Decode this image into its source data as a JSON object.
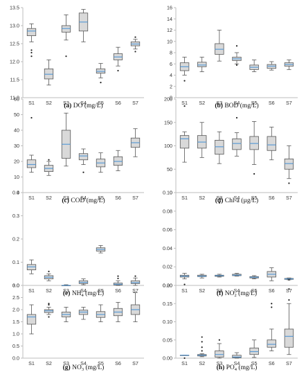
{
  "chart_data": [
    {
      "type": "box",
      "caption_letter": "(a)",
      "caption_text": "DO (mg/L)",
      "ylim": [
        11.0,
        13.5
      ],
      "yticks": [
        "11.0",
        "11.5",
        "12.0",
        "12.5",
        "13.0",
        "13.5"
      ],
      "categories": [
        "S1",
        "S2",
        "S3",
        "S4",
        "S5",
        "S6",
        "S7"
      ],
      "series": [
        {
          "min": 12.55,
          "q1": 12.72,
          "median": 12.85,
          "q3": 12.92,
          "max": 13.05,
          "outliers": [
            12.15,
            12.25,
            12.32
          ]
        },
        {
          "min": 11.35,
          "q1": 11.52,
          "median": 11.65,
          "q3": 11.8,
          "max": 12.05,
          "outliers": []
        },
        {
          "min": 12.6,
          "q1": 12.82,
          "median": 12.92,
          "q3": 13.0,
          "max": 13.3,
          "outliers": [
            12.15
          ]
        },
        {
          "min": 12.55,
          "q1": 12.85,
          "median": 13.1,
          "q3": 13.35,
          "max": 13.45,
          "outliers": []
        },
        {
          "min": 11.55,
          "q1": 11.68,
          "median": 11.73,
          "q3": 11.8,
          "max": 11.95,
          "outliers": [
            11.42
          ]
        },
        {
          "min": 11.88,
          "q1": 12.05,
          "median": 12.13,
          "q3": 12.22,
          "max": 12.4,
          "outliers": [
            11.75
          ]
        },
        {
          "min": 12.35,
          "q1": 12.44,
          "median": 12.49,
          "q3": 12.55,
          "max": 12.62,
          "outliers": [
            12.28,
            12.68
          ]
        }
      ]
    },
    {
      "type": "box",
      "caption_letter": "(b)",
      "caption_text": "BOD (mg/L)",
      "ylim": [
        0,
        16
      ],
      "yticks": [
        "0",
        "2",
        "4",
        "6",
        "8",
        "10",
        "12",
        "14",
        "16"
      ],
      "categories": [
        "S1",
        "S2",
        "S3",
        "S4",
        "S5",
        "S6",
        "S7"
      ],
      "series": [
        {
          "min": 4.0,
          "q1": 4.8,
          "median": 5.5,
          "q3": 6.2,
          "max": 7.2,
          "outliers": [
            3.0
          ]
        },
        {
          "min": 4.6,
          "q1": 5.5,
          "median": 5.8,
          "q3": 6.3,
          "max": 7.2,
          "outliers": []
        },
        {
          "min": 6.5,
          "q1": 7.7,
          "median": 8.6,
          "q3": 9.6,
          "max": 12.0,
          "outliers": []
        },
        {
          "min": 6.0,
          "q1": 6.6,
          "median": 6.9,
          "q3": 7.2,
          "max": 8.0,
          "outliers": [
            9.2,
            5.8
          ]
        },
        {
          "min": 4.6,
          "q1": 5.0,
          "median": 5.4,
          "q3": 5.8,
          "max": 6.7,
          "outliers": []
        },
        {
          "min": 4.9,
          "q1": 5.2,
          "median": 5.6,
          "q3": 5.9,
          "max": 6.4,
          "outliers": []
        },
        {
          "min": 5.0,
          "q1": 5.6,
          "median": 5.9,
          "q3": 6.2,
          "max": 6.7,
          "outliers": []
        }
      ]
    },
    {
      "type": "box",
      "caption_letter": "(c)",
      "caption_text": "COD (mg/L)",
      "ylim": [
        0,
        60
      ],
      "yticks": [
        "0",
        "10",
        "20",
        "30",
        "40",
        "50",
        "60"
      ],
      "categories": [
        "S1",
        "S2",
        "S3",
        "S4",
        "S5",
        "S6",
        "S7"
      ],
      "series": [
        {
          "min": 13,
          "q1": 16,
          "median": 18,
          "q3": 21,
          "max": 24,
          "outliers": [
            48
          ]
        },
        {
          "min": 11,
          "q1": 13.5,
          "median": 15.5,
          "q3": 17.5,
          "max": 20,
          "outliers": [
            21
          ]
        },
        {
          "min": 17,
          "q1": 22,
          "median": 31,
          "q3": 40,
          "max": 51,
          "outliers": []
        },
        {
          "min": 18,
          "q1": 21,
          "median": 23.5,
          "q3": 25,
          "max": 28,
          "outliers": [
            13
          ]
        },
        {
          "min": 13,
          "q1": 16.5,
          "median": 19,
          "q3": 21.5,
          "max": 25.5,
          "outliers": []
        },
        {
          "min": 14,
          "q1": 17.5,
          "median": 20,
          "q3": 23,
          "max": 27,
          "outliers": []
        },
        {
          "min": 23,
          "q1": 29,
          "median": 32,
          "q3": 35,
          "max": 41,
          "outliers": []
        }
      ]
    },
    {
      "type": "box",
      "caption_letter": "(d)",
      "caption_text": "Chl-a (µg/L)",
      "ylim": [
        0,
        200
      ],
      "yticks": [
        "0",
        "50",
        "100",
        "150",
        "200"
      ],
      "categories": [
        "S1",
        "S2",
        "S3",
        "S4",
        "S5",
        "S6",
        "S7"
      ],
      "series": [
        {
          "min": 65,
          "q1": 95,
          "median": 115,
          "q3": 122,
          "max": 130,
          "outliers": [
            185
          ]
        },
        {
          "min": 75,
          "q1": 95,
          "median": 108,
          "q3": 122,
          "max": 150,
          "outliers": []
        },
        {
          "min": 62,
          "q1": 82,
          "median": 98,
          "q3": 112,
          "max": 130,
          "outliers": []
        },
        {
          "min": 78,
          "q1": 92,
          "median": 105,
          "q3": 115,
          "max": 128,
          "outliers": [
            160
          ]
        },
        {
          "min": 60,
          "q1": 92,
          "median": 105,
          "q3": 120,
          "max": 152,
          "outliers": [
            40
          ]
        },
        {
          "min": 70,
          "q1": 90,
          "median": 102,
          "q3": 120,
          "max": 140,
          "outliers": []
        },
        {
          "min": 30,
          "q1": 50,
          "median": 62,
          "q3": 72,
          "max": 100,
          "outliers": [
            20
          ]
        }
      ]
    },
    {
      "type": "box",
      "caption_letter": "(e)",
      "caption_text_main": "NH",
      "caption_sub": "4",
      "caption_tail": " (mg/L)",
      "ylim": [
        0,
        0.4
      ],
      "yticks": [
        "0.0",
        "0.1",
        "0.2",
        "0.3",
        "0.4"
      ],
      "categories": [
        "S1",
        "S2",
        "S3",
        "S4",
        "S5",
        "S6",
        "S7"
      ],
      "series": [
        {
          "min": 0.05,
          "q1": 0.067,
          "median": 0.08,
          "q3": 0.09,
          "max": 0.11,
          "outliers": []
        },
        {
          "min": 0.02,
          "q1": 0.028,
          "median": 0.035,
          "q3": 0.042,
          "max": 0.05,
          "outliers": [
            0.06
          ]
        },
        {
          "min": 0.0,
          "q1": 0.0,
          "median": 0.0,
          "q3": 0.0,
          "max": 0.003,
          "outliers": []
        },
        {
          "min": 0.003,
          "q1": 0.008,
          "median": 0.013,
          "q3": 0.02,
          "max": 0.028,
          "outliers": []
        },
        {
          "min": 0.14,
          "q1": 0.148,
          "median": 0.155,
          "q3": 0.162,
          "max": 0.172,
          "outliers": []
        },
        {
          "min": 0.0,
          "q1": 0.002,
          "median": 0.005,
          "q3": 0.01,
          "max": 0.02,
          "outliers": [
            0.03,
            0.04
          ]
        },
        {
          "min": 0.0,
          "q1": 0.008,
          "median": 0.012,
          "q3": 0.02,
          "max": 0.032,
          "outliers": [
            0.04
          ]
        }
      ]
    },
    {
      "type": "box",
      "caption_letter": "(f)",
      "caption_text_main": "NO",
      "caption_sub": "2",
      "caption_tail": " (mg/L)",
      "ylim": [
        0,
        0.1
      ],
      "yticks": [
        "0.00",
        "0.02",
        "0.04",
        "0.06",
        "0.08",
        "0.10"
      ],
      "categories": [
        "S1",
        "S2",
        "S3",
        "S4",
        "S5",
        "S6",
        "S7"
      ],
      "series": [
        {
          "min": 0.007,
          "q1": 0.009,
          "median": 0.01,
          "q3": 0.011,
          "max": 0.013,
          "outliers": [
            0.001
          ]
        },
        {
          "min": 0.008,
          "q1": 0.0095,
          "median": 0.01,
          "q3": 0.011,
          "max": 0.012,
          "outliers": []
        },
        {
          "min": 0.009,
          "q1": 0.0098,
          "median": 0.0105,
          "q3": 0.011,
          "max": 0.012,
          "outliers": [
            0.089
          ]
        },
        {
          "min": 0.01,
          "q1": 0.0105,
          "median": 0.011,
          "q3": 0.012,
          "max": 0.013,
          "outliers": []
        },
        {
          "min": 0.007,
          "q1": 0.008,
          "median": 0.0088,
          "q3": 0.0095,
          "max": 0.0105,
          "outliers": []
        },
        {
          "min": 0.005,
          "q1": 0.009,
          "median": 0.012,
          "q3": 0.015,
          "max": 0.019,
          "outliers": []
        },
        {
          "min": 0.006,
          "q1": 0.0065,
          "median": 0.007,
          "q3": 0.0075,
          "max": 0.008,
          "outliers": [
            0.006
          ]
        }
      ]
    },
    {
      "type": "box",
      "caption_letter": "(g)",
      "caption_text_main": "NO",
      "caption_sub": "3",
      "caption_tail": " (mg/L)",
      "ylim": [
        0,
        3.0
      ],
      "yticks": [
        "0.0",
        "0.5",
        "1.0",
        "1.5",
        "2.0",
        "2.5",
        "3.0"
      ],
      "categories": [
        "S1",
        "S2",
        "S3",
        "S4",
        "S5",
        "S6",
        "S7"
      ],
      "series": [
        {
          "min": 1.0,
          "q1": 1.4,
          "median": 1.7,
          "q3": 1.8,
          "max": 2.2,
          "outliers": []
        },
        {
          "min": 1.8,
          "q1": 1.88,
          "median": 1.95,
          "q3": 2.0,
          "max": 2.1,
          "outliers": [
            2.2,
            2.25,
            1.7
          ]
        },
        {
          "min": 1.5,
          "q1": 1.7,
          "median": 1.8,
          "q3": 1.9,
          "max": 2.1,
          "outliers": []
        },
        {
          "min": 1.6,
          "q1": 1.8,
          "median": 1.9,
          "q3": 1.98,
          "max": 2.1,
          "outliers": []
        },
        {
          "min": 1.5,
          "q1": 1.68,
          "median": 1.8,
          "q3": 1.92,
          "max": 2.2,
          "outliers": []
        },
        {
          "min": 1.5,
          "q1": 1.75,
          "median": 1.9,
          "q3": 2.05,
          "max": 2.3,
          "outliers": []
        },
        {
          "min": 1.5,
          "q1": 1.8,
          "median": 2.0,
          "q3": 2.2,
          "max": 2.7,
          "outliers": []
        }
      ]
    },
    {
      "type": "box",
      "caption_letter": "(h)",
      "caption_text_main": "PO",
      "caption_sub": "4",
      "caption_tail": " (mg/L)",
      "ylim": [
        0,
        0.2
      ],
      "yticks": [
        "0.00",
        "0.05",
        "0.10",
        "0.15",
        "0.20"
      ],
      "categories": [
        "S1",
        "S2",
        "S3",
        "S4",
        "S5",
        "S6",
        "S7"
      ],
      "series": [
        {
          "min": 0.008,
          "q1": 0.008,
          "median": 0.008,
          "q3": 0.008,
          "max": 0.008,
          "outliers": [
            0.0
          ]
        },
        {
          "min": 0.004,
          "q1": 0.006,
          "median": 0.008,
          "q3": 0.01,
          "max": 0.012,
          "outliers": [
            0.02,
            0.03,
            0.045,
            0.058
          ]
        },
        {
          "min": 0.0,
          "q1": 0.003,
          "median": 0.01,
          "q3": 0.02,
          "max": 0.04,
          "outliers": [
            0.05
          ]
        },
        {
          "min": 0.0,
          "q1": 0.001,
          "median": 0.003,
          "q3": 0.008,
          "max": 0.015,
          "outliers": []
        },
        {
          "min": 0.002,
          "q1": 0.01,
          "median": 0.018,
          "q3": 0.028,
          "max": 0.05,
          "outliers": []
        },
        {
          "min": 0.02,
          "q1": 0.03,
          "median": 0.038,
          "q3": 0.05,
          "max": 0.08,
          "outliers": [
            0.14,
            0.15
          ]
        },
        {
          "min": 0.01,
          "q1": 0.03,
          "median": 0.06,
          "q3": 0.08,
          "max": 0.15,
          "outliers": [
            0.16,
            0.19
          ]
        }
      ]
    }
  ],
  "style": {
    "box_fill": "#d9d9d9",
    "box_stroke": "#555555",
    "median_color": "#5b9bd5",
    "outlier_color": "#222222",
    "axis_color": "#bdbdbd"
  }
}
